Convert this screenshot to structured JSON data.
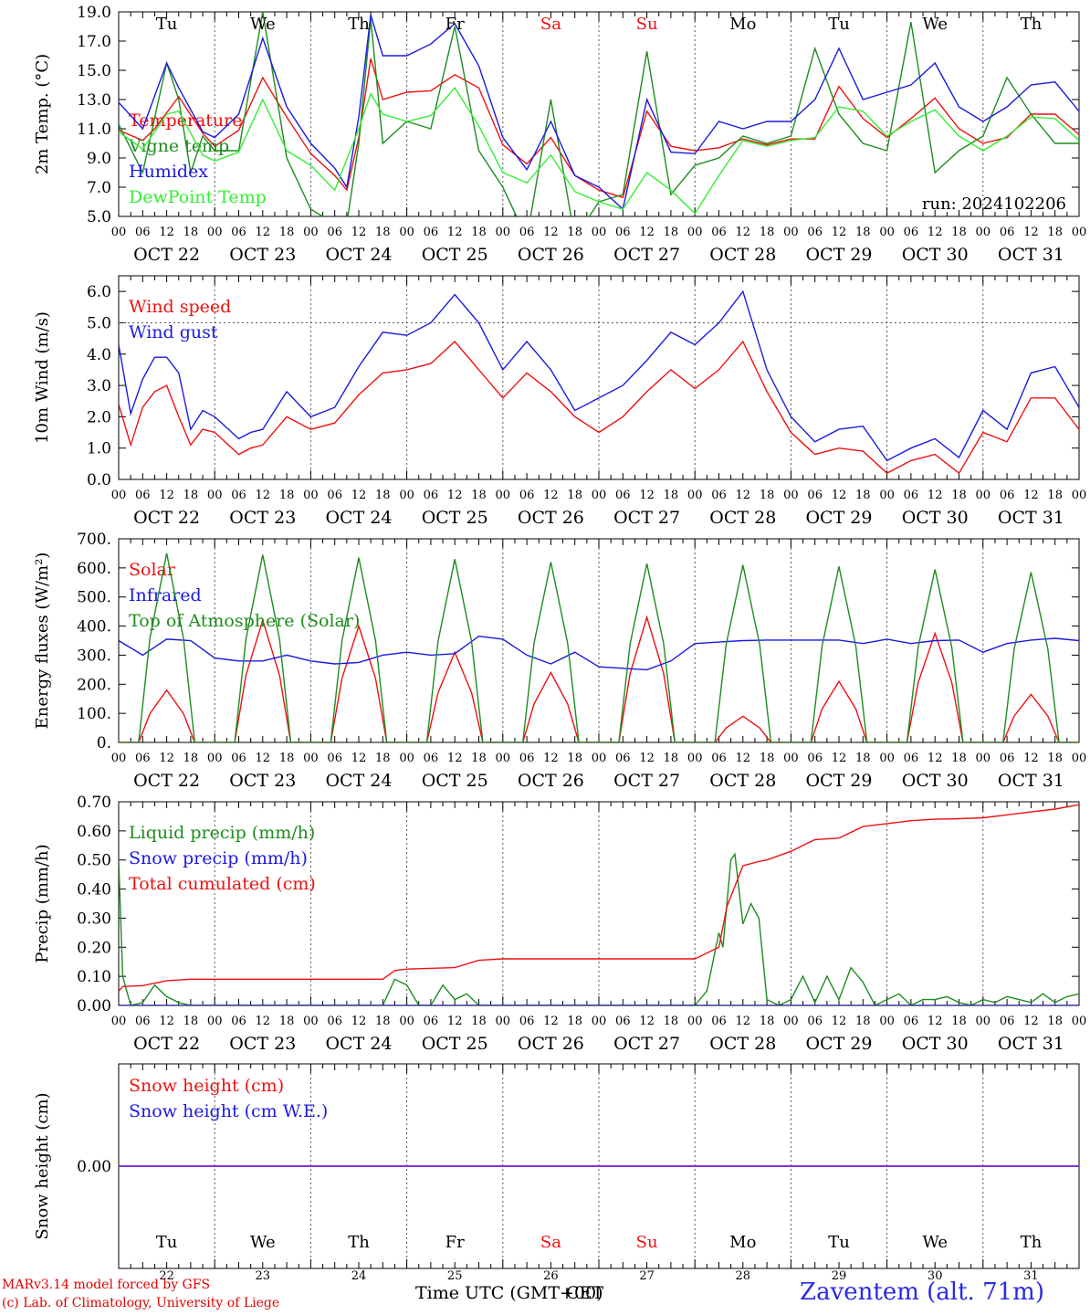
{
  "colors": {
    "red": "#ee1111",
    "green": "#1e8c1e",
    "blue": "#1a1ae0",
    "lightgreen": "#33ee33",
    "purple": "#8a2be2",
    "weekend": "#ee1111"
  },
  "time_axis": {
    "hour_ticks": [
      "00",
      "06",
      "12",
      "18"
    ],
    "final_tick": "00",
    "dates": [
      "OCT 22",
      "OCT 23",
      "OCT 24",
      "OCT 25",
      "OCT 26",
      "OCT 27",
      "OCT 28",
      "OCT 29",
      "OCT 30",
      "OCT 31"
    ],
    "weekdays": [
      "Tu",
      "We",
      "Th",
      "Fr",
      "Sa",
      "Su",
      "Mo",
      "Tu",
      "We",
      "Th"
    ],
    "weekend_days": [
      "Sa",
      "Su"
    ],
    "day_numbers": [
      "22",
      "23",
      "24",
      "25",
      "26",
      "27",
      "28",
      "29",
      "30",
      "31"
    ]
  },
  "footer": {
    "credit_line1": "MARv3.14 model forced by GFS",
    "credit_line2": "(c) Lab. of Climatology, University of Liege",
    "xaxis_title": "Time UTC (GMT+00)",
    "xaxis_title_overlay": "CET",
    "station": "Zaventem (alt. 71m)"
  },
  "chart_data": [
    {
      "type": "line",
      "ylabel": "2m Temp. (°C)",
      "ylim": [
        5.0,
        19.0
      ],
      "yticks": [
        "5.0",
        "7.0",
        "9.0",
        "11.0",
        "13.0",
        "15.0",
        "17.0",
        "19.0"
      ],
      "annotation": "run: 2024102206",
      "x_unit": "hours since 22 Oct 00 UTC",
      "series": [
        {
          "name": "Temperature",
          "color": "red",
          "x": [
            0,
            6,
            9,
            15,
            21,
            24,
            30,
            36,
            42,
            48,
            54,
            57,
            60,
            63,
            66,
            72,
            78,
            84,
            90,
            96,
            102,
            108,
            114,
            120,
            126,
            132,
            138,
            144,
            150,
            156,
            162,
            168,
            174,
            180,
            186,
            192,
            198,
            204,
            210,
            216,
            222,
            228,
            234,
            240
          ],
          "y": [
            10.9,
            10.2,
            11.0,
            13.2,
            10.7,
            9.8,
            10.9,
            14.5,
            11.8,
            9.3,
            7.8,
            6.8,
            10.4,
            15.8,
            13.0,
            13.5,
            13.6,
            14.7,
            13.8,
            9.9,
            8.6,
            10.4,
            7.8,
            6.8,
            6.3,
            12.2,
            9.8,
            9.5,
            9.7,
            10.3,
            9.9,
            10.3,
            10.3,
            13.9,
            11.7,
            10.4,
            11.7,
            13.1,
            11.0,
            10.0,
            10.4,
            12.0,
            12.0,
            10.6
          ]
        },
        {
          "name": "Vigne temp",
          "color": "green",
          "x": [
            0,
            6,
            12,
            15,
            18,
            21,
            24,
            30,
            36,
            42,
            48,
            54,
            57,
            60,
            63,
            66,
            72,
            78,
            84,
            90,
            96,
            102,
            108,
            114,
            120,
            126,
            132,
            138,
            144,
            150,
            156,
            162,
            168,
            174,
            180,
            186,
            192,
            198,
            204,
            210,
            216,
            222,
            228,
            234,
            240
          ],
          "y": [
            11.3,
            8.0,
            15.5,
            13.0,
            8.0,
            10.5,
            9.5,
            9.5,
            19.0,
            9.0,
            5.5,
            4.5,
            4.5,
            10.0,
            18.5,
            10.0,
            11.5,
            11.0,
            18.0,
            9.5,
            7.0,
            3.5,
            13.0,
            3.5,
            6.0,
            6.5,
            16.3,
            6.5,
            8.5,
            9.0,
            10.5,
            10.0,
            10.5,
            16.5,
            12.0,
            10.0,
            9.5,
            18.3,
            8.0,
            9.5,
            10.5,
            14.5,
            12.0,
            10.0,
            10.0
          ]
        },
        {
          "name": "Humidex",
          "color": "blue",
          "x": [
            0,
            6,
            12,
            15,
            21,
            24,
            30,
            36,
            42,
            48,
            54,
            57,
            60,
            63,
            66,
            72,
            78,
            84,
            90,
            96,
            102,
            108,
            114,
            120,
            126,
            132,
            138,
            144,
            150,
            156,
            162,
            168,
            174,
            180,
            186,
            192,
            198,
            204,
            210,
            216,
            222,
            228,
            234,
            240
          ],
          "y": [
            12.8,
            11.0,
            15.5,
            13.8,
            10.8,
            10.4,
            12.0,
            17.2,
            12.5,
            10.0,
            8.3,
            7.0,
            11.8,
            18.8,
            16.0,
            16.0,
            16.8,
            18.2,
            15.3,
            10.4,
            8.2,
            11.5,
            7.8,
            7.0,
            5.5,
            13.0,
            9.4,
            9.3,
            11.5,
            11.0,
            11.5,
            11.5,
            13.0,
            16.5,
            13.0,
            13.5,
            14.0,
            15.5,
            12.5,
            11.5,
            12.5,
            14.0,
            14.2,
            12.2
          ]
        },
        {
          "name": "DewPoint Temp",
          "color": "lightgreen",
          "x": [
            0,
            6,
            12,
            15,
            21,
            24,
            30,
            36,
            42,
            48,
            54,
            60,
            63,
            66,
            72,
            78,
            84,
            90,
            96,
            102,
            108,
            114,
            120,
            126,
            132,
            138,
            144,
            150,
            156,
            162,
            168,
            174,
            180,
            186,
            192,
            198,
            204,
            210,
            216,
            222,
            228,
            234,
            240
          ],
          "y": [
            10.8,
            9.6,
            12.0,
            12.2,
            9.2,
            8.8,
            9.4,
            13.0,
            9.5,
            8.5,
            6.8,
            11.0,
            13.4,
            12.0,
            11.5,
            11.9,
            13.8,
            11.2,
            8.0,
            7.3,
            9.2,
            6.7,
            6.0,
            5.5,
            8.0,
            6.8,
            5.2,
            7.8,
            10.2,
            9.8,
            10.2,
            10.4,
            12.5,
            12.2,
            10.5,
            11.5,
            12.3,
            10.5,
            9.5,
            10.5,
            11.8,
            11.7,
            10.2
          ]
        }
      ]
    },
    {
      "type": "line",
      "ylabel": "10m Wind (m/s)",
      "ylim": [
        0.0,
        6.5
      ],
      "yticks": [
        "0.0",
        "1.0",
        "2.0",
        "3.0",
        "4.0",
        "5.0",
        "6.0"
      ],
      "reference_line": 5.0,
      "x_unit": "hours since 22 Oct 00 UTC",
      "series": [
        {
          "name": "Wind speed",
          "color": "red",
          "x": [
            0,
            3,
            6,
            9,
            12,
            15,
            18,
            21,
            24,
            30,
            33,
            36,
            42,
            48,
            54,
            60,
            66,
            72,
            78,
            84,
            90,
            96,
            102,
            108,
            114,
            120,
            126,
            132,
            138,
            144,
            150,
            156,
            162,
            168,
            174,
            180,
            186,
            192,
            198,
            204,
            210,
            216,
            222,
            228,
            234,
            240
          ],
          "y": [
            2.4,
            1.1,
            2.3,
            2.8,
            3.0,
            2.0,
            1.1,
            1.6,
            1.5,
            0.8,
            1.0,
            1.1,
            2.0,
            1.6,
            1.8,
            2.7,
            3.4,
            3.5,
            3.7,
            4.4,
            3.5,
            2.6,
            3.4,
            2.8,
            2.0,
            1.5,
            2.0,
            2.8,
            3.5,
            2.9,
            3.5,
            4.4,
            2.8,
            1.5,
            0.8,
            1.0,
            0.9,
            0.2,
            0.6,
            0.8,
            0.2,
            1.5,
            1.2,
            2.6,
            2.6,
            1.6
          ]
        },
        {
          "name": "Wind gust",
          "color": "blue",
          "x": [
            0,
            3,
            6,
            9,
            12,
            15,
            18,
            21,
            24,
            30,
            33,
            36,
            42,
            48,
            54,
            60,
            66,
            72,
            78,
            84,
            90,
            96,
            102,
            108,
            114,
            120,
            126,
            132,
            138,
            144,
            150,
            156,
            162,
            168,
            174,
            180,
            186,
            192,
            198,
            204,
            210,
            216,
            222,
            228,
            234,
            240
          ],
          "y": [
            4.3,
            2.1,
            3.2,
            3.9,
            3.9,
            3.4,
            1.6,
            2.2,
            2.0,
            1.3,
            1.5,
            1.6,
            2.8,
            2.0,
            2.3,
            3.6,
            4.7,
            4.6,
            5.0,
            5.9,
            5.0,
            3.5,
            4.4,
            3.5,
            2.2,
            2.6,
            3.0,
            3.8,
            4.7,
            4.3,
            5.0,
            6.0,
            3.5,
            2.0,
            1.2,
            1.6,
            1.7,
            0.6,
            1.0,
            1.3,
            0.7,
            2.2,
            1.6,
            3.4,
            3.6,
            2.3
          ]
        }
      ]
    },
    {
      "type": "line",
      "ylabel": "Energy fluxes (W/m²)",
      "ylim": [
        0,
        700
      ],
      "yticks": [
        "0.",
        "100.",
        "200.",
        "300.",
        "400.",
        "500.",
        "600.",
        "700."
      ],
      "x_unit": "hours since 22 Oct 00 UTC",
      "series": [
        {
          "name": "Solar",
          "color": "red",
          "peaks": [
            180,
            420,
            400,
            310,
            240,
            430,
            90,
            210,
            375,
            165
          ],
          "peak_hour": 12
        },
        {
          "name": "Infrared",
          "color": "blue",
          "x": [
            0,
            6,
            12,
            18,
            24,
            30,
            36,
            42,
            48,
            54,
            60,
            66,
            72,
            78,
            84,
            90,
            96,
            102,
            108,
            114,
            120,
            126,
            132,
            138,
            144,
            150,
            156,
            162,
            168,
            174,
            180,
            186,
            192,
            198,
            204,
            210,
            216,
            222,
            228,
            234,
            240
          ],
          "y": [
            350,
            300,
            355,
            350,
            290,
            280,
            280,
            300,
            280,
            270,
            275,
            300,
            310,
            300,
            305,
            365,
            355,
            300,
            270,
            310,
            260,
            255,
            250,
            280,
            340,
            345,
            350,
            352,
            352,
            352,
            352,
            340,
            355,
            340,
            350,
            352,
            310,
            340,
            352,
            358,
            350
          ]
        },
        {
          "name": "Top of Atmosphere (Solar)",
          "color": "green",
          "peaks": [
            650,
            645,
            635,
            630,
            620,
            615,
            610,
            605,
            595,
            585
          ],
          "peak_hour": 12
        }
      ]
    },
    {
      "type": "line",
      "ylabel": "Precip (mm/h)",
      "ylim": [
        0.0,
        0.7
      ],
      "yticks": [
        "0.00",
        "0.10",
        "0.20",
        "0.30",
        "0.40",
        "0.50",
        "0.60",
        "0.70"
      ],
      "x_unit": "hours since 22 Oct 00 UTC",
      "series": [
        {
          "name": "Liquid precip (mm/h)",
          "color": "green",
          "x": [
            0,
            1,
            3,
            6,
            9,
            12,
            15,
            18,
            24,
            66,
            69,
            72,
            75,
            78,
            81,
            84,
            87,
            90,
            96,
            144,
            147,
            150,
            151,
            153,
            154,
            156,
            158,
            160,
            162,
            165,
            168,
            171,
            174,
            177,
            180,
            183,
            186,
            189,
            192,
            195,
            198,
            201,
            204,
            207,
            210,
            213,
            216,
            219,
            222,
            225,
            228,
            231,
            234,
            237,
            240
          ],
          "y": [
            0.5,
            0.1,
            0.0,
            0.01,
            0.07,
            0.03,
            0.01,
            0.0,
            0.0,
            0.0,
            0.09,
            0.07,
            0.0,
            0.0,
            0.07,
            0.02,
            0.04,
            0.0,
            0.0,
            0.0,
            0.05,
            0.25,
            0.2,
            0.5,
            0.52,
            0.28,
            0.35,
            0.3,
            0.02,
            0.0,
            0.02,
            0.1,
            0.01,
            0.1,
            0.02,
            0.13,
            0.08,
            0.0,
            0.02,
            0.04,
            0.0,
            0.02,
            0.02,
            0.03,
            0.01,
            0.0,
            0.02,
            0.01,
            0.03,
            0.02,
            0.01,
            0.04,
            0.01,
            0.03,
            0.04
          ]
        },
        {
          "name": "Snow precip (mm/h)",
          "color": "blue",
          "x": [
            0,
            240
          ],
          "y": [
            0.0,
            0.0
          ]
        },
        {
          "name": "Total cumulated (cm)",
          "color": "red",
          "x": [
            0,
            1,
            6,
            12,
            18,
            24,
            60,
            66,
            69,
            72,
            84,
            90,
            96,
            120,
            144,
            150,
            152,
            156,
            160,
            162,
            168,
            174,
            180,
            186,
            192,
            198,
            204,
            210,
            216,
            222,
            228,
            234,
            240
          ],
          "y": [
            0.05,
            0.065,
            0.068,
            0.085,
            0.09,
            0.09,
            0.09,
            0.09,
            0.12,
            0.125,
            0.13,
            0.155,
            0.16,
            0.16,
            0.16,
            0.2,
            0.34,
            0.48,
            0.495,
            0.5,
            0.53,
            0.57,
            0.575,
            0.615,
            0.625,
            0.635,
            0.64,
            0.642,
            0.645,
            0.655,
            0.665,
            0.675,
            0.69
          ]
        }
      ]
    },
    {
      "type": "line",
      "ylabel": "Snow height (cm)",
      "yticks": [
        "0.00"
      ],
      "x_unit": "hours since 22 Oct 00 UTC",
      "series": [
        {
          "name": "Snow height (cm)",
          "color": "red",
          "x": [
            0,
            240
          ],
          "y": [
            0,
            0
          ]
        },
        {
          "name": "Snow height (cm W.E.)",
          "color": "blue",
          "x": [
            0,
            240
          ],
          "y": [
            0,
            0
          ]
        }
      ]
    }
  ]
}
